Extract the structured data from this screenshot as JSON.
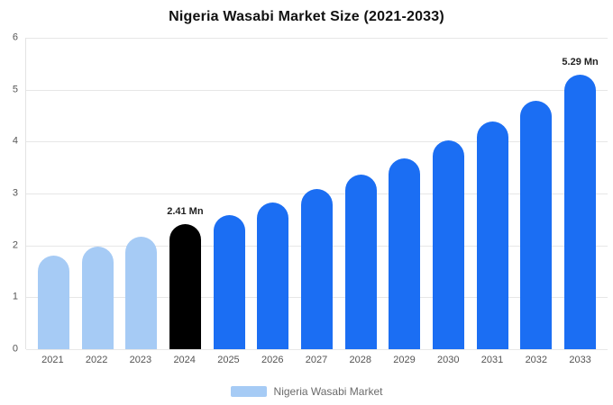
{
  "chart_data": {
    "type": "bar",
    "title": "Nigeria Wasabi Market Size (2021-2033)",
    "categories": [
      "2021",
      "2022",
      "2023",
      "2024",
      "2025",
      "2026",
      "2027",
      "2028",
      "2029",
      "2030",
      "2031",
      "2032",
      "2033"
    ],
    "values": [
      1.8,
      1.98,
      2.17,
      2.41,
      2.58,
      2.82,
      3.08,
      3.36,
      3.67,
      4.02,
      4.39,
      4.79,
      5.29
    ],
    "unit": "Mn",
    "ylim": [
      0,
      6
    ],
    "yticks": [
      0,
      1,
      2,
      3,
      4,
      5,
      6
    ],
    "grid": true,
    "xlabel": "",
    "ylabel": "",
    "bar_colors": [
      "#a6cbf5",
      "#a6cbf5",
      "#a6cbf5",
      "#000000",
      "#1b6ef3",
      "#1b6ef3",
      "#1b6ef3",
      "#1b6ef3",
      "#1b6ef3",
      "#1b6ef3",
      "#1b6ef3",
      "#1b6ef3",
      "#1b6ef3"
    ],
    "colors": {
      "historical": "#a6cbf5",
      "base_year": "#000000",
      "forecast": "#1b6ef3",
      "grid": "#e7e7e7"
    },
    "data_labels": [
      {
        "index": 3,
        "text": "2.41 Mn"
      },
      {
        "index": 12,
        "text": "5.29 Mn"
      }
    ],
    "legend": {
      "position": "bottom",
      "label": "Nigeria Wasabi Market",
      "swatch_color": "#a6cbf5"
    }
  }
}
